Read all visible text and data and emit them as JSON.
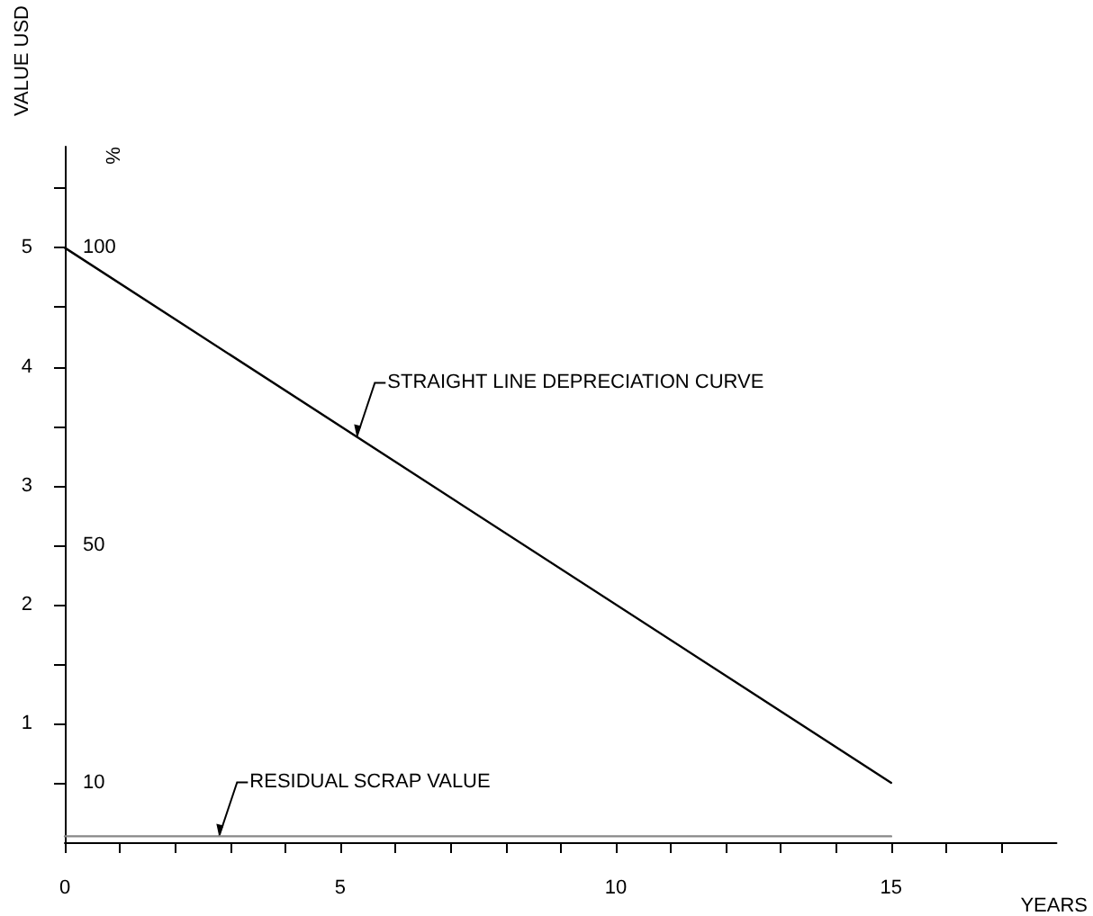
{
  "chart_data": {
    "type": "line",
    "xlabel": "YEARS",
    "ylabel": "VALUE USD",
    "y2label": "%",
    "xlim": [
      0,
      18
    ],
    "xticks": [
      0,
      {
        "value": 1,
        "label": null
      },
      {
        "value": 2,
        "label": null
      },
      {
        "value": 3,
        "label": null
      },
      {
        "value": 4,
        "label": null
      },
      5,
      {
        "value": 6,
        "label": null
      },
      {
        "value": 7,
        "label": null
      },
      {
        "value": 8,
        "label": null
      },
      {
        "value": 9,
        "label": null
      },
      10,
      {
        "value": 11,
        "label": null
      },
      {
        "value": 12,
        "label": null
      },
      {
        "value": 13,
        "label": null
      },
      {
        "value": 14,
        "label": null
      },
      15,
      {
        "value": 16,
        "label": null
      },
      {
        "value": 17,
        "label": null
      }
    ],
    "ylim": [
      0,
      5.85
    ],
    "yticks": [
      {
        "value": 0.5,
        "label": null
      },
      1,
      {
        "value": 1.5,
        "label": null
      },
      2,
      {
        "value": 2.5,
        "label": null
      },
      3,
      {
        "value": 3.5,
        "label": null
      },
      4,
      {
        "value": 4.5,
        "label": null
      },
      5,
      {
        "value": 5.5,
        "label": null
      }
    ],
    "y2lim": [
      0,
      117
    ],
    "y2ticks": [
      10,
      50,
      100
    ],
    "series": [
      {
        "color": "#000000",
        "values": [
          5,
          0.5
        ]
      },
      {
        "color": "#888888",
        "values": [
          0.05,
          0.05
        ]
      }
    ],
    "x": [
      0,
      15
    ],
    "annotations": [
      {
        "text": "STRAIGHT LINE DEPRECIATION CURVE",
        "x": 5.3,
        "y": 3.41
      },
      {
        "text": "RESIDUAL SCRAP VALUE",
        "x": 2.8,
        "y": 0.05
      }
    ],
    "grid": false,
    "marker": "none",
    "line_style": "solid"
  }
}
